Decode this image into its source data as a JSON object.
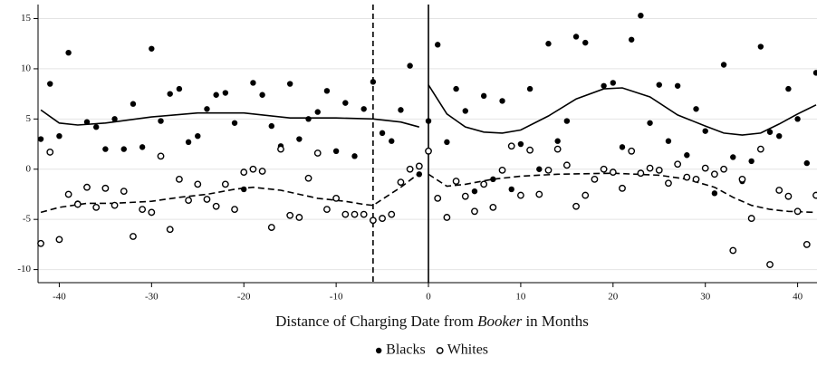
{
  "chart_data": {
    "type": "scatter",
    "xlabel": {
      "before": "Distance of Charging Date from",
      "italic": "Booker",
      "after": "in Months"
    },
    "xlim": [
      -42.3,
      42.1
    ],
    "ylim": [
      -11.3,
      16.4
    ],
    "xticks": [
      -40,
      -30,
      -20,
      -10,
      0,
      10,
      20,
      30,
      40
    ],
    "yticks": [
      -10,
      -5,
      0,
      5,
      10,
      15
    ],
    "grid": true,
    "x": [
      -42,
      -41,
      -40,
      -39,
      -38,
      -37,
      -36,
      -35,
      -34,
      -33,
      -32,
      -31,
      -30,
      -29,
      -28,
      -27,
      -26,
      -25,
      -24,
      -23,
      -22,
      -21,
      -20,
      -19,
      -18,
      -17,
      -16,
      -15,
      -14,
      -13,
      -12,
      -11,
      -10,
      -9,
      -8,
      -7,
      -6,
      -5,
      -4,
      -3,
      -2,
      -1,
      0,
      1,
      2,
      3,
      4,
      5,
      6,
      7,
      8,
      9,
      10,
      11,
      12,
      13,
      14,
      15,
      16,
      17,
      18,
      19,
      20,
      21,
      22,
      23,
      24,
      25,
      26,
      27,
      28,
      29,
      30,
      31,
      32,
      33,
      34,
      35,
      36,
      37,
      38,
      39,
      40,
      41,
      42
    ],
    "series": [
      {
        "name": "Blacks",
        "color": "#000000",
        "marker": "filled",
        "values": [
          3,
          8.5,
          3.3,
          11.6,
          -3.4,
          4.7,
          4.2,
          2,
          5,
          2,
          6.5,
          2.2,
          12,
          4.8,
          7.5,
          8,
          2.7,
          3.3,
          6,
          7.4,
          7.6,
          4.6,
          -2,
          8.6,
          7.4,
          4.3,
          2.3,
          8.5,
          3,
          5,
          5.7,
          7.8,
          1.8,
          6.6,
          1.3,
          6,
          8.7,
          3.6,
          2.8,
          5.9,
          10.3,
          -0.5,
          4.8,
          12.4,
          2.7,
          8,
          5.8,
          -2.2,
          7.3,
          -1,
          6.8,
          -2,
          2.5,
          8,
          0,
          12.5,
          2.8,
          4.8,
          13.2,
          12.6,
          -1,
          8.3,
          8.6,
          2.2,
          12.9,
          15.3,
          4.6,
          8.4,
          2.8,
          8.3,
          1.4,
          6,
          3.8,
          -2.4,
          10.4,
          1.2,
          -1.2,
          0.8,
          12.2,
          3.7,
          3.3,
          8,
          5,
          0.6,
          9.6
        ],
        "fit": {
          "style": "solid",
          "x": [
            -42,
            -40,
            -38,
            -35,
            -30,
            -25,
            -20,
            -15,
            -10,
            -6,
            -3,
            -1,
            null,
            0,
            2,
            4,
            6,
            8,
            10,
            13,
            16,
            19,
            21,
            24,
            27,
            30,
            32,
            34,
            36,
            38,
            40,
            42
          ],
          "values": [
            5.9,
            4.6,
            4.4,
            4.6,
            5.2,
            5.6,
            5.6,
            5.1,
            5.1,
            5.0,
            4.7,
            4.2,
            null,
            8.4,
            5.5,
            4.2,
            3.7,
            3.6,
            3.9,
            5.3,
            7.0,
            8.0,
            8.1,
            7.2,
            5.4,
            4.3,
            3.6,
            3.4,
            3.6,
            4.5,
            5.5,
            6.4
          ]
        }
      },
      {
        "name": "Whites",
        "color": "#000000",
        "marker": "hollow",
        "values": [
          -7.4,
          1.7,
          -7,
          -2.5,
          -3.5,
          -1.8,
          -3.8,
          -1.9,
          -3.6,
          -2.2,
          -6.7,
          -4,
          -4.3,
          1.3,
          -6,
          -1,
          -3.1,
          -1.5,
          -3,
          -3.7,
          -1.5,
          -4,
          -0.3,
          0,
          -0.2,
          -5.8,
          2,
          -4.6,
          -4.8,
          -0.9,
          1.6,
          -4,
          -2.9,
          -4.5,
          -4.5,
          -4.5,
          -5.1,
          -4.9,
          -4.5,
          -1.3,
          0,
          0.3,
          1.8,
          -2.9,
          -4.8,
          -1.2,
          -2.7,
          -4.2,
          -1.5,
          -3.8,
          -0.1,
          2.3,
          -2.6,
          1.9,
          -2.5,
          -0.1,
          2,
          0.4,
          -3.7,
          -2.6,
          -1,
          0,
          -0.3,
          -1.9,
          1.8,
          -0.4,
          0.1,
          -0.1,
          -1.4,
          0.5,
          -0.8,
          -1,
          0.1,
          -0.5,
          0,
          -8.1,
          -1,
          -4.9,
          2,
          -9.5,
          -2.1,
          -2.7,
          -4.2,
          -7.5,
          -2.6
        ],
        "fit": {
          "style": "dashed",
          "x": [
            -42,
            -40,
            -37,
            -34,
            -30,
            -27,
            -24,
            -21,
            -19,
            -16,
            -12,
            -9,
            -7,
            -6,
            -5,
            -3,
            -1,
            null,
            0,
            2,
            4,
            7,
            10,
            14,
            20,
            25,
            28,
            31,
            33,
            35,
            37,
            39,
            42
          ],
          "values": [
            -4.3,
            -3.8,
            -3.4,
            -3.4,
            -3.2,
            -2.8,
            -2.5,
            -2.0,
            -1.8,
            -2.1,
            -2.9,
            -3.2,
            -3.5,
            -3.6,
            -3.0,
            -1.8,
            -0.4,
            null,
            -0.5,
            -1.7,
            -1.5,
            -1.0,
            -0.7,
            -0.5,
            -0.4,
            -0.6,
            -1.0,
            -1.8,
            -2.8,
            -3.6,
            -4.0,
            -4.2,
            -4.3
          ]
        }
      }
    ],
    "vlines": [
      {
        "x": -6,
        "style": "dashed"
      },
      {
        "x": 0,
        "style": "solid"
      }
    ]
  }
}
